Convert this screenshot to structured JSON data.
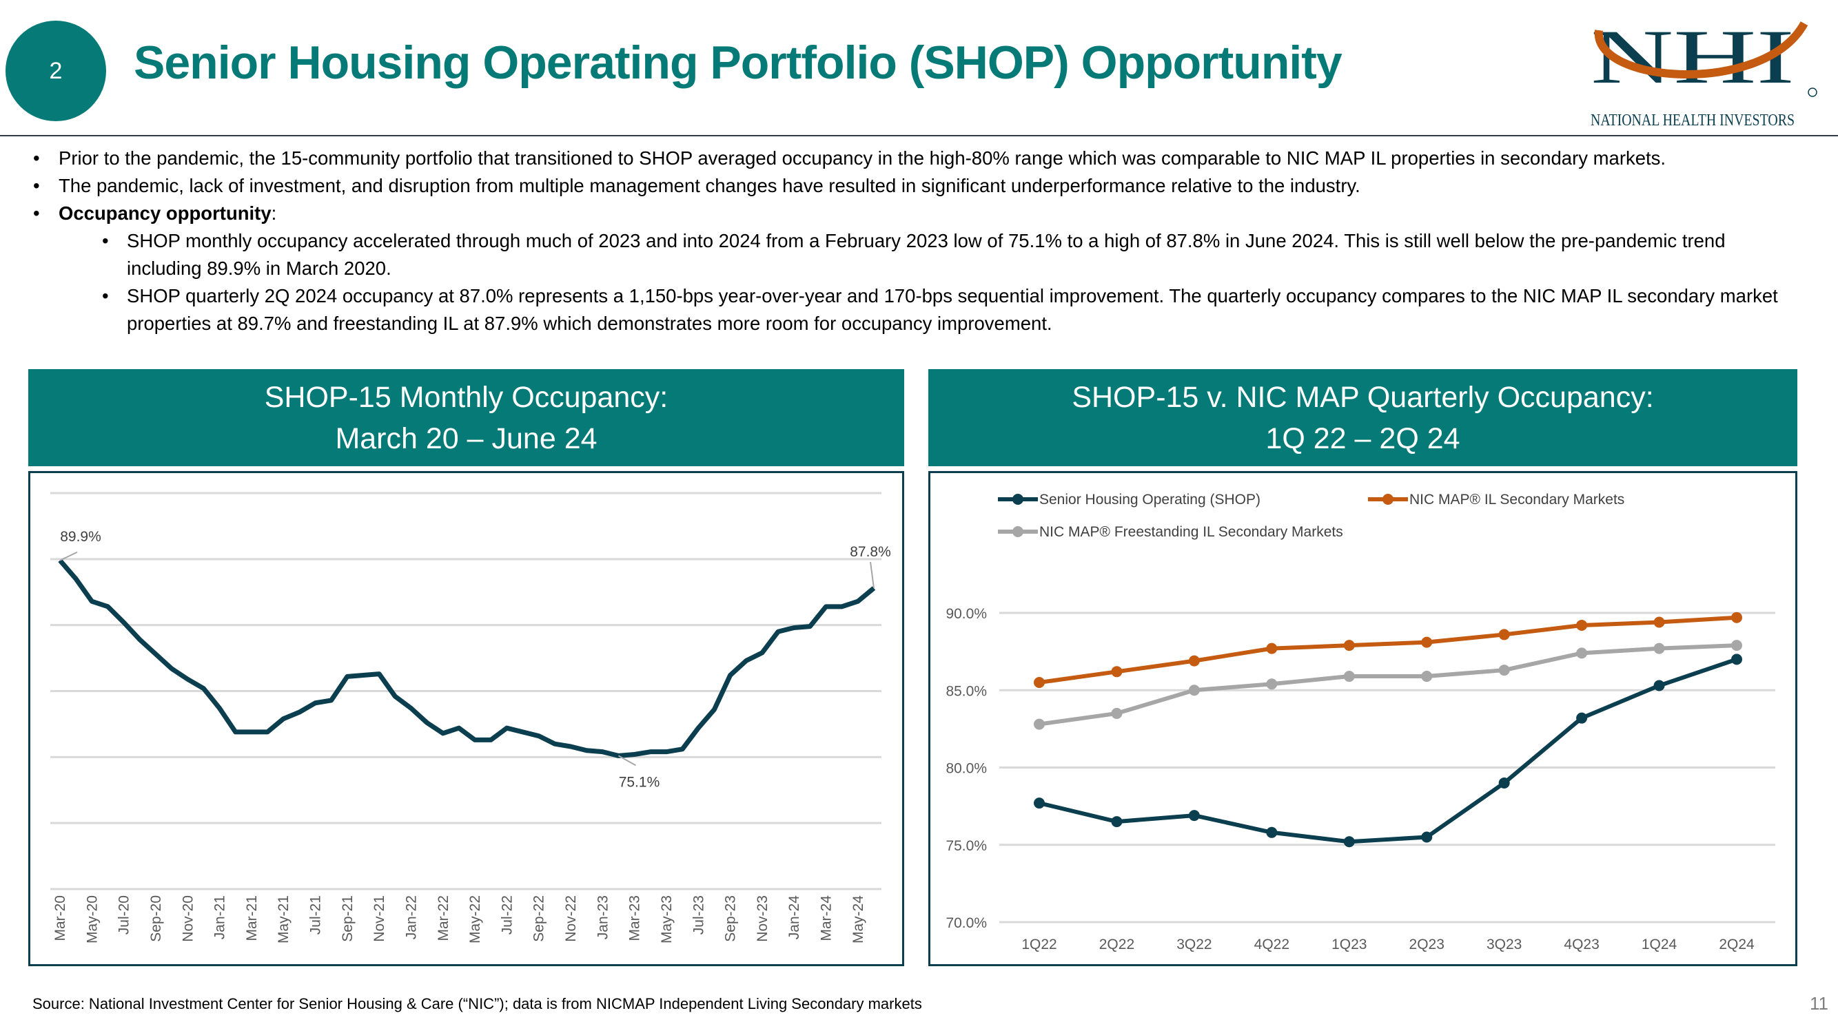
{
  "header": {
    "section_number": "2",
    "title": "Senior Housing Operating Portfolio (SHOP) Opportunity",
    "logo_text": "NHI",
    "logo_subtext": "NATIONAL HEALTH INVESTORS"
  },
  "bullets": [
    {
      "text": "Prior to the pandemic, the 15-community portfolio that transitioned to SHOP averaged occupancy in the high-80% range which was comparable to NIC MAP IL properties in secondary markets."
    },
    {
      "text": "The pandemic, lack of investment, and disruption from multiple management changes have resulted in significant underperformance relative to the industry."
    },
    {
      "bold": "Occupancy opportunity",
      "text": ":"
    },
    {
      "sub": true,
      "text": "SHOP monthly occupancy accelerated through much of 2023 and into 2024 from a February 2023 low of 75.1% to a high of 87.8% in June 2024.  This is still well below the pre-pandemic trend including 89.9% in March 2020."
    },
    {
      "sub": true,
      "text": "SHOP quarterly 2Q 2024 occupancy at 87.0% represents a 1,150-bps year-over-year and 170-bps sequential improvement.  The quarterly occupancy compares to the NIC MAP IL secondary market properties at 89.7% and freestanding IL at 87.9% which demonstrates more room for occupancy improvement."
    }
  ],
  "panels": {
    "left_title_1": "SHOP-15 Monthly Occupancy:",
    "left_title_2": "March 20 – June 24",
    "right_title_1": "SHOP-15 v. NIC MAP Quarterly Occupancy:",
    "right_title_2": "1Q 22 – 2Q 24"
  },
  "chart_data": [
    {
      "type": "line",
      "title": "SHOP-15 Monthly Occupancy: March 20 – June 24",
      "ylim": [
        65,
        95
      ],
      "grid": true,
      "x": [
        "Mar-20",
        "Apr-20",
        "May-20",
        "Jun-20",
        "Jul-20",
        "Aug-20",
        "Sep-20",
        "Oct-20",
        "Nov-20",
        "Dec-20",
        "Jan-21",
        "Feb-21",
        "Mar-21",
        "Apr-21",
        "May-21",
        "Jun-21",
        "Jul-21",
        "Aug-21",
        "Sep-21",
        "Oct-21",
        "Nov-21",
        "Dec-21",
        "Jan-22",
        "Feb-22",
        "Mar-22",
        "Apr-22",
        "May-22",
        "Jun-22",
        "Jul-22",
        "Aug-22",
        "Sep-22",
        "Oct-22",
        "Nov-22",
        "Dec-22",
        "Jan-23",
        "Feb-23",
        "Mar-23",
        "Apr-23",
        "May-23",
        "Jun-23",
        "Jul-23",
        "Aug-23",
        "Sep-23",
        "Oct-23",
        "Nov-23",
        "Dec-23",
        "Jan-24",
        "Feb-24",
        "Mar-24",
        "Apr-24",
        "May-24",
        "Jun-24"
      ],
      "tick_labels": [
        "Mar-20",
        "May-20",
        "Jul-20",
        "Sep-20",
        "Nov-20",
        "Jan-21",
        "Mar-21",
        "May-21",
        "Jul-21",
        "Sep-21",
        "Nov-21",
        "Jan-22",
        "Mar-22",
        "May-22",
        "Jul-22",
        "Sep-22",
        "Nov-22",
        "Jan-23",
        "Mar-23",
        "May-23",
        "Jul-23",
        "Sep-23",
        "Nov-23",
        "Jan-24",
        "Mar-24",
        "May-24"
      ],
      "series": [
        {
          "name": "SHOP-15",
          "color": "#0B3F4F",
          "values": [
            89.9,
            88.5,
            86.8,
            86.4,
            85.2,
            83.9,
            82.8,
            81.7,
            80.9,
            80.2,
            78.7,
            76.9,
            76.9,
            76.9,
            77.9,
            78.4,
            79.1,
            79.3,
            81.1,
            81.2,
            81.3,
            79.6,
            78.7,
            77.6,
            76.8,
            77.2,
            76.3,
            76.3,
            77.2,
            76.9,
            76.6,
            76.0,
            75.8,
            75.5,
            75.4,
            75.1,
            75.2,
            75.4,
            75.4,
            75.6,
            77.2,
            78.6,
            81.2,
            82.3,
            82.9,
            84.5,
            84.8,
            84.9,
            86.4,
            86.4,
            86.8,
            87.8
          ]
        }
      ],
      "annotations": [
        {
          "index": 0,
          "label": "89.9%"
        },
        {
          "index": 35,
          "label": "75.1%"
        },
        {
          "index": 51,
          "label": "87.8%"
        }
      ]
    },
    {
      "type": "line",
      "title": "SHOP-15 v. NIC MAP Quarterly Occupancy: 1Q 22 – 2Q 24",
      "ylim": [
        70,
        90
      ],
      "yticks": [
        "70.0%",
        "75.0%",
        "80.0%",
        "85.0%",
        "90.0%"
      ],
      "ytick_values": [
        70,
        75,
        80,
        85,
        90
      ],
      "grid": true,
      "legend": "top-left",
      "x": [
        "1Q22",
        "2Q22",
        "3Q22",
        "4Q22",
        "1Q23",
        "2Q23",
        "3Q23",
        "4Q23",
        "1Q24",
        "2Q24"
      ],
      "series": [
        {
          "name": "Senior Housing Operating (SHOP)",
          "color": "#0B3F4F",
          "values": [
            77.7,
            76.5,
            76.9,
            75.8,
            75.2,
            75.5,
            79.0,
            83.2,
            85.3,
            87.0
          ]
        },
        {
          "name": "NIC MAP® IL Secondary Markets",
          "color": "#C55A11",
          "values": [
            85.5,
            86.2,
            86.9,
            87.7,
            87.9,
            88.1,
            88.6,
            89.2,
            89.4,
            89.7
          ]
        },
        {
          "name": "NIC MAP® Freestanding IL Secondary Markets",
          "color": "#A6A6A6",
          "values": [
            82.8,
            83.5,
            85.0,
            85.4,
            85.9,
            85.9,
            86.3,
            87.4,
            87.7,
            87.9
          ]
        }
      ]
    }
  ],
  "footer": {
    "source": "Source:  National Investment Center for Senior Housing & Care (“NIC”); data is from NICMAP Independent Living Secondary markets",
    "page_number": "11"
  }
}
